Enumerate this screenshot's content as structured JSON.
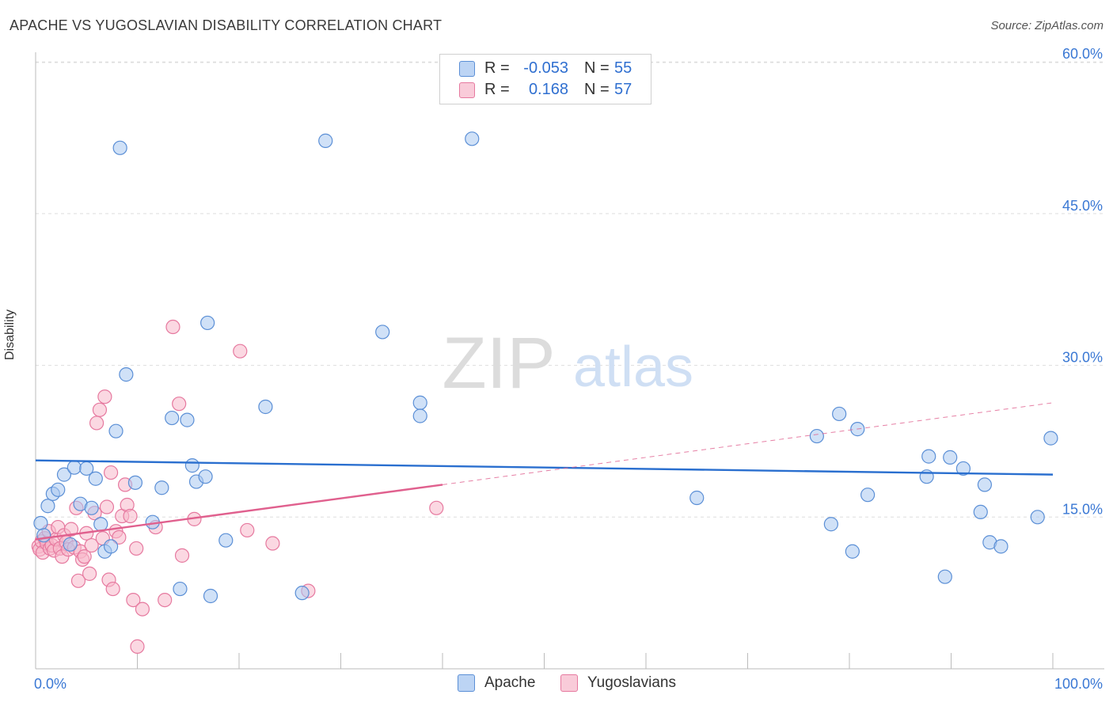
{
  "title": "APACHE VS YUGOSLAVIAN DISABILITY CORRELATION CHART",
  "source": "Source: ZipAtlas.com",
  "watermark": {
    "zip": "ZIP",
    "atlas": "atlas"
  },
  "legend": {
    "rows": [
      {
        "series": "Apache",
        "r_label": "R =",
        "r_value": "-0.053",
        "n_label": "N =",
        "n_value": "55"
      },
      {
        "series": "Yugoslavians",
        "r_label": "R =",
        "r_value": "0.168",
        "n_label": "N =",
        "n_value": "57"
      }
    ]
  },
  "bottom_legend": [
    "Apache",
    "Yugoslavians"
  ],
  "colors": {
    "apache_fill": "#a9c8f0",
    "apache_stroke": "#5b8fd6",
    "apache_line": "#2a6fcf",
    "yugo_fill": "#f7b8cb",
    "yugo_stroke": "#e6799f",
    "yugo_line": "#e0608e",
    "axis_text": "#3a78d4",
    "grid": "#dddddd"
  },
  "chart_data": {
    "type": "scatter",
    "title": "APACHE VS YUGOSLAVIAN DISABILITY CORRELATION CHART",
    "xlabel": "",
    "ylabel": "Disability",
    "xlim": [
      0,
      100
    ],
    "ylim": [
      0,
      63
    ],
    "x_tick_labels": [
      "0.0%",
      "100.0%"
    ],
    "y_ticks": [
      15,
      30,
      45,
      60
    ],
    "y_tick_labels": [
      "15.0%",
      "30.0%",
      "45.0%",
      "60.0%"
    ],
    "series": [
      {
        "name": "Apache",
        "r": -0.053,
        "n": 55,
        "trend": {
          "x": [
            0,
            100
          ],
          "y": [
            20.6,
            19.2
          ]
        },
        "points": [
          [
            0.5,
            14.4
          ],
          [
            0.8,
            13.2
          ],
          [
            1.2,
            16.1
          ],
          [
            1.7,
            17.3
          ],
          [
            2.2,
            17.7
          ],
          [
            2.8,
            19.2
          ],
          [
            3.4,
            12.3
          ],
          [
            3.8,
            19.9
          ],
          [
            4.4,
            16.3
          ],
          [
            5.0,
            19.8
          ],
          [
            5.5,
            15.9
          ],
          [
            5.9,
            18.8
          ],
          [
            6.4,
            14.3
          ],
          [
            6.8,
            11.6
          ],
          [
            7.4,
            12.1
          ],
          [
            7.9,
            23.5
          ],
          [
            8.3,
            51.5
          ],
          [
            8.9,
            29.1
          ],
          [
            9.8,
            18.4
          ],
          [
            11.5,
            14.5
          ],
          [
            12.4,
            17.9
          ],
          [
            13.4,
            24.8
          ],
          [
            14.2,
            7.9
          ],
          [
            14.9,
            24.6
          ],
          [
            15.4,
            20.1
          ],
          [
            15.8,
            18.5
          ],
          [
            16.7,
            19.0
          ],
          [
            16.9,
            34.2
          ],
          [
            17.2,
            7.2
          ],
          [
            18.7,
            12.7
          ],
          [
            22.6,
            25.9
          ],
          [
            26.2,
            7.5
          ],
          [
            28.5,
            52.2
          ],
          [
            34.1,
            33.3
          ],
          [
            37.8,
            26.3
          ],
          [
            37.8,
            25.0
          ],
          [
            42.9,
            52.4
          ],
          [
            65.0,
            16.9
          ],
          [
            76.8,
            23.0
          ],
          [
            78.2,
            14.3
          ],
          [
            79.0,
            25.2
          ],
          [
            80.3,
            11.6
          ],
          [
            80.8,
            23.7
          ],
          [
            81.8,
            17.2
          ],
          [
            87.6,
            19.0
          ],
          [
            87.8,
            21.0
          ],
          [
            89.4,
            9.1
          ],
          [
            89.9,
            20.9
          ],
          [
            91.2,
            19.8
          ],
          [
            92.9,
            15.5
          ],
          [
            93.3,
            18.2
          ],
          [
            93.8,
            12.5
          ],
          [
            94.9,
            12.1
          ],
          [
            98.5,
            15.0
          ],
          [
            99.8,
            22.8
          ]
        ]
      },
      {
        "name": "Yugoslavians",
        "r": 0.168,
        "n": 57,
        "trend": {
          "x": [
            0,
            40
          ],
          "y": [
            12.8,
            18.2
          ]
        },
        "trend_extended": {
          "x": [
            40,
            100
          ],
          "y": [
            18.2,
            26.3
          ]
        },
        "points": [
          [
            0.3,
            12.1
          ],
          [
            0.4,
            11.8
          ],
          [
            0.6,
            12.6
          ],
          [
            0.7,
            11.5
          ],
          [
            0.9,
            12.9
          ],
          [
            1.1,
            12.4
          ],
          [
            1.3,
            13.6
          ],
          [
            1.4,
            11.9
          ],
          [
            1.6,
            12.2
          ],
          [
            1.8,
            11.7
          ],
          [
            2.0,
            12.8
          ],
          [
            2.2,
            14.0
          ],
          [
            2.4,
            11.9
          ],
          [
            2.6,
            11.1
          ],
          [
            2.8,
            13.2
          ],
          [
            3.0,
            12.5
          ],
          [
            3.2,
            11.8
          ],
          [
            3.5,
            13.8
          ],
          [
            3.8,
            12.0
          ],
          [
            4.0,
            15.9
          ],
          [
            4.2,
            8.7
          ],
          [
            4.4,
            11.6
          ],
          [
            4.6,
            10.8
          ],
          [
            4.8,
            11.1
          ],
          [
            5.0,
            13.4
          ],
          [
            5.3,
            9.4
          ],
          [
            5.5,
            12.2
          ],
          [
            5.8,
            15.4
          ],
          [
            6.0,
            24.3
          ],
          [
            6.3,
            25.6
          ],
          [
            6.6,
            12.9
          ],
          [
            6.8,
            26.9
          ],
          [
            7.0,
            16.0
          ],
          [
            7.2,
            8.8
          ],
          [
            7.4,
            19.4
          ],
          [
            7.6,
            7.9
          ],
          [
            7.9,
            13.6
          ],
          [
            8.2,
            13.0
          ],
          [
            8.5,
            15.1
          ],
          [
            8.8,
            18.2
          ],
          [
            9.0,
            16.2
          ],
          [
            9.3,
            15.1
          ],
          [
            9.6,
            6.8
          ],
          [
            9.9,
            11.9
          ],
          [
            10.0,
            2.2
          ],
          [
            10.5,
            5.9
          ],
          [
            11.8,
            14.0
          ],
          [
            12.7,
            6.8
          ],
          [
            13.5,
            33.8
          ],
          [
            14.1,
            26.2
          ],
          [
            14.4,
            11.2
          ],
          [
            15.6,
            14.8
          ],
          [
            20.1,
            31.4
          ],
          [
            20.8,
            13.7
          ],
          [
            23.3,
            12.4
          ],
          [
            26.8,
            7.7
          ],
          [
            39.4,
            15.9
          ]
        ]
      }
    ]
  }
}
